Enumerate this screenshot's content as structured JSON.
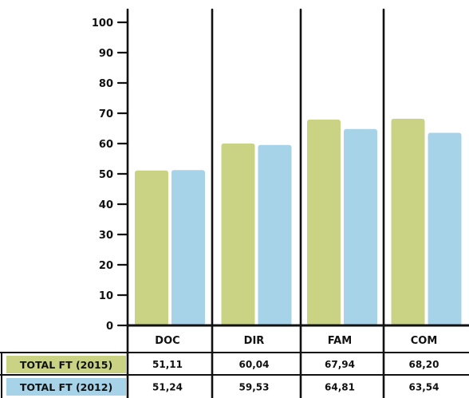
{
  "chart_data": {
    "type": "bar",
    "categories": [
      "DOC",
      "DIR",
      "FAM",
      "COM"
    ],
    "series": [
      {
        "name": "TOTAL FT (2015)",
        "values": [
          51.11,
          60.04,
          67.94,
          68.2
        ],
        "labels": [
          "51,11",
          "60,04",
          "67,94",
          "68,20"
        ],
        "color": "#c9d383"
      },
      {
        "name": "TOTAL FT (2012)",
        "values": [
          51.24,
          59.53,
          64.81,
          63.54
        ],
        "labels": [
          "51,24",
          "59,53",
          "64,81",
          "63,54"
        ],
        "color": "#a7d3e9"
      }
    ],
    "ylim": [
      0,
      100
    ],
    "yticks": [
      "0",
      "10",
      "20",
      "30",
      "40",
      "50",
      "60",
      "70",
      "80",
      "90",
      "100"
    ],
    "grid": false,
    "legend": "table-below"
  }
}
